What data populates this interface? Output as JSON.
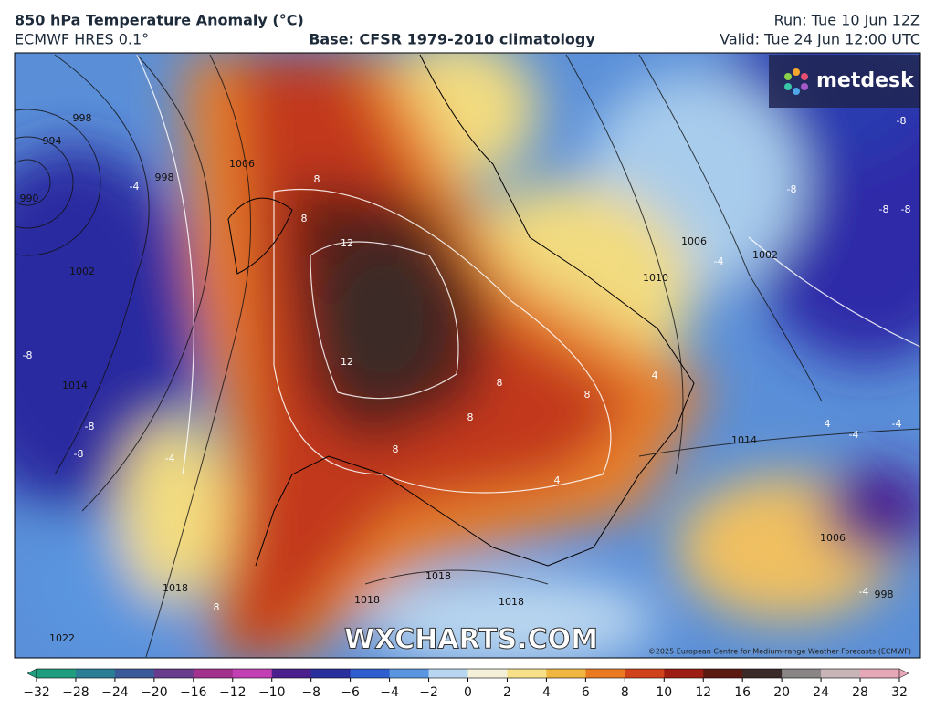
{
  "header": {
    "title": "850 hPa Temperature Anomaly (°C)",
    "model": "ECMWF HRES 0.1°",
    "base": "Base: CFSR 1979-2010 climatology",
    "run": "Run: Tue 10 Jun 12Z",
    "valid": "Valid: Tue 24 Jun 12:00 UTC"
  },
  "logo": "metdesk",
  "watermark": "WXCHARTS.COM",
  "copyright": "©2025 European Centre for Medium-range Weather Forecasts (ECMWF)",
  "pressure_labels": [
    "998",
    "994",
    "990",
    "998",
    "1006",
    "1002",
    "1014",
    "1010",
    "1006",
    "1002",
    "1014",
    "1018",
    "1018",
    "1018",
    "1018",
    "1022",
    "1006",
    "998"
  ],
  "anomaly_labels": [
    "12",
    "12",
    "8",
    "8",
    "8",
    "8",
    "8",
    "8",
    "8",
    "-4",
    "-8",
    "-8",
    "-8",
    "-4",
    "-8",
    "-8",
    "-8",
    "-8",
    "-4",
    "4",
    "4",
    "-4",
    "-4",
    "4",
    "-4"
  ],
  "colorbar": {
    "ticks": [
      {
        "value": -32,
        "label": "−32"
      },
      {
        "value": -28,
        "label": "−28"
      },
      {
        "value": -24,
        "label": "−24"
      },
      {
        "value": -20,
        "label": "−20"
      },
      {
        "value": -16,
        "label": "−16"
      },
      {
        "value": -12,
        "label": "−12"
      },
      {
        "value": -10,
        "label": "−10"
      },
      {
        "value": -8,
        "label": "−8"
      },
      {
        "value": -6,
        "label": "−6"
      },
      {
        "value": -4,
        "label": "−4"
      },
      {
        "value": -2,
        "label": "−2"
      },
      0,
      2,
      4,
      6,
      8,
      10,
      12,
      16,
      20,
      24,
      28,
      32
    ],
    "colors": [
      "#1f9e7e",
      "#2a7f95",
      "#3b5a9a",
      "#6a3c8e",
      "#a2328e",
      "#c23fb4",
      "#4b1f8c",
      "#2a2f9e",
      "#2f5fcf",
      "#5a95e0",
      "#b8d6ef",
      "#f3efd8",
      "#f6e08a",
      "#f0b640",
      "#e97a22",
      "#d1421a",
      "#9e1d12",
      "#5a1a12",
      "#3a2a28",
      "#8a8686",
      "#c9b4b8",
      "#e6a8b8"
    ]
  }
}
